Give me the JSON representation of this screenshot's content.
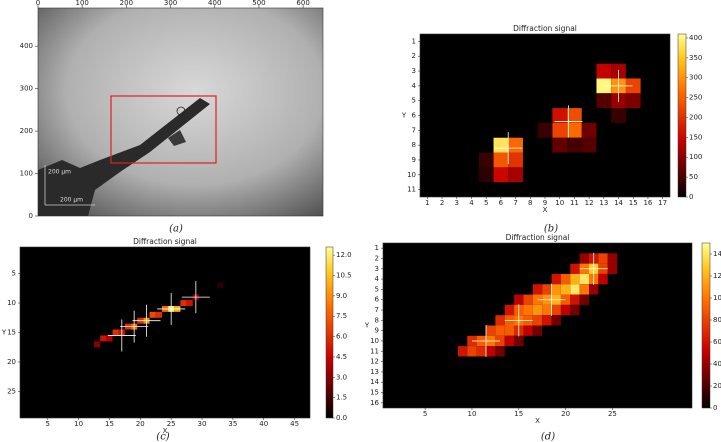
{
  "chart_data": [
    {
      "type": "image",
      "caption": "(a)",
      "xlim": [
        0,
        645
      ],
      "ylim": [
        0,
        490
      ],
      "xticks": [
        0,
        100,
        200,
        300,
        400,
        500,
        600
      ],
      "yticks": [
        0,
        100,
        200,
        300,
        400
      ],
      "annotations": [
        "200 µm",
        "200 µm"
      ]
    },
    {
      "type": "heatmap",
      "title": "Diffraction signal",
      "x_label": "X",
      "y_label": "Y",
      "caption": "(b)",
      "xlim": [
        0.5,
        17.5
      ],
      "ylim": [
        0.5,
        11.5
      ],
      "xticks": [
        1,
        2,
        3,
        4,
        5,
        6,
        7,
        8,
        9,
        10,
        11,
        12,
        13,
        14,
        15,
        16,
        17
      ],
      "yticks": [
        1,
        2,
        3,
        4,
        5,
        6,
        7,
        8,
        9,
        10,
        11
      ],
      "clim": [
        0,
        410
      ],
      "cticks": [
        0,
        50,
        100,
        150,
        200,
        250,
        300,
        350,
        400
      ],
      "cells": [
        [
          6,
          8,
          380
        ],
        [
          7,
          8,
          260
        ],
        [
          6,
          9,
          240
        ],
        [
          7,
          9,
          200
        ],
        [
          6,
          10,
          150
        ],
        [
          7,
          10,
          120
        ],
        [
          5,
          9,
          40
        ],
        [
          5,
          10,
          30
        ],
        [
          10,
          6,
          160
        ],
        [
          11,
          6,
          230
        ],
        [
          10,
          7,
          220
        ],
        [
          11,
          7,
          260
        ],
        [
          12,
          7,
          80
        ],
        [
          12,
          8,
          60
        ],
        [
          9,
          7,
          40
        ],
        [
          10,
          8,
          70
        ],
        [
          11,
          8,
          50
        ],
        [
          13,
          4,
          400
        ],
        [
          14,
          4,
          300
        ],
        [
          15,
          4,
          220
        ],
        [
          13,
          3,
          140
        ],
        [
          14,
          3,
          120
        ],
        [
          14,
          5,
          110
        ],
        [
          13,
          5,
          60
        ],
        [
          15,
          5,
          90
        ],
        [
          14,
          6,
          40
        ]
      ],
      "crosshairs": [
        [
          6.5,
          8.2
        ],
        [
          10.6,
          6.4
        ],
        [
          14,
          4
        ]
      ]
    },
    {
      "type": "heatmap",
      "title": "Diffraction signal",
      "x_label": "X",
      "y_label": "Y",
      "caption": "(c)",
      "xlim": [
        0.5,
        47.5
      ],
      "ylim": [
        0.5,
        29.5
      ],
      "xticks": [
        5,
        10,
        15,
        20,
        25,
        30,
        35,
        40,
        45
      ],
      "yticks": [
        5,
        10,
        15,
        20,
        25
      ],
      "clim": [
        0,
        12.6
      ],
      "cticks": [
        {
          "value": 0,
          "label": "0.0"
        },
        1.5,
        {
          "value": 3,
          "label": "3.0"
        },
        4.5,
        {
          "value": 6,
          "label": "6.0"
        },
        7.5,
        {
          "value": 9,
          "label": "9.0"
        },
        10.5,
        {
          "value": 12,
          "label": "12.0"
        }
      ],
      "cells": [
        [
          25,
          11,
          12
        ],
        [
          26,
          11,
          10
        ],
        [
          24,
          11,
          8
        ],
        [
          23,
          12,
          6
        ],
        [
          22,
          12,
          7
        ],
        [
          21,
          13,
          9
        ],
        [
          20,
          13,
          6
        ],
        [
          19,
          14,
          8
        ],
        [
          18,
          14,
          6
        ],
        [
          17,
          15,
          5
        ],
        [
          16,
          15,
          6
        ],
        [
          15,
          16,
          4
        ],
        [
          14,
          16,
          5
        ],
        [
          13,
          17,
          3
        ],
        [
          27,
          10,
          6
        ],
        [
          28,
          10,
          5
        ],
        [
          29,
          9,
          3
        ],
        [
          33,
          7,
          1
        ]
      ],
      "crosshairs": [
        [
          17,
          15.5
        ],
        [
          19,
          14
        ],
        [
          21,
          13
        ],
        [
          25,
          11
        ],
        [
          29,
          9
        ]
      ]
    },
    {
      "type": "heatmap",
      "title": "Diffraction signal",
      "x_label": "X",
      "y_label": "Y",
      "caption": "(d)",
      "xlim": [
        0.5,
        33.5
      ],
      "ylim": [
        0.5,
        16.5
      ],
      "xticks": [
        5,
        10,
        15,
        20,
        25
      ],
      "yticks": [
        1,
        2,
        3,
        4,
        5,
        6,
        7,
        8,
        9,
        10,
        11,
        12,
        13,
        14,
        15,
        16
      ],
      "clim": [
        0,
        150
      ],
      "cticks": [
        0,
        20,
        40,
        60,
        80,
        100,
        120,
        140
      ],
      "cells": [
        [
          22,
          2,
          40
        ],
        [
          23,
          2,
          60
        ],
        [
          24,
          2,
          80
        ],
        [
          25,
          2,
          40
        ],
        [
          21,
          3,
          60
        ],
        [
          22,
          3,
          100
        ],
        [
          23,
          3,
          130
        ],
        [
          24,
          3,
          80
        ],
        [
          25,
          3,
          40
        ],
        [
          19,
          4,
          60
        ],
        [
          20,
          4,
          90
        ],
        [
          21,
          4,
          120
        ],
        [
          22,
          4,
          140
        ],
        [
          23,
          4,
          100
        ],
        [
          24,
          4,
          50
        ],
        [
          17,
          5,
          60
        ],
        [
          18,
          5,
          80
        ],
        [
          19,
          5,
          110
        ],
        [
          20,
          5,
          120
        ],
        [
          21,
          5,
          140
        ],
        [
          22,
          5,
          100
        ],
        [
          23,
          5,
          40
        ],
        [
          15,
          6,
          50
        ],
        [
          16,
          6,
          80
        ],
        [
          17,
          6,
          100
        ],
        [
          18,
          6,
          110
        ],
        [
          19,
          6,
          120
        ],
        [
          20,
          6,
          90
        ],
        [
          21,
          6,
          60
        ],
        [
          22,
          6,
          30
        ],
        [
          14,
          7,
          60
        ],
        [
          15,
          7,
          90
        ],
        [
          16,
          7,
          100
        ],
        [
          17,
          7,
          110
        ],
        [
          18,
          7,
          100
        ],
        [
          19,
          7,
          80
        ],
        [
          20,
          7,
          50
        ],
        [
          21,
          7,
          30
        ],
        [
          13,
          8,
          70
        ],
        [
          14,
          8,
          90
        ],
        [
          15,
          8,
          100
        ],
        [
          16,
          8,
          90
        ],
        [
          17,
          8,
          80
        ],
        [
          18,
          8,
          60
        ],
        [
          19,
          8,
          30
        ],
        [
          12,
          9,
          80
        ],
        [
          13,
          9,
          90
        ],
        [
          14,
          9,
          90
        ],
        [
          15,
          9,
          70
        ],
        [
          16,
          9,
          50
        ],
        [
          17,
          9,
          30
        ],
        [
          10,
          10,
          70
        ],
        [
          11,
          10,
          90
        ],
        [
          12,
          10,
          100
        ],
        [
          13,
          10,
          80
        ],
        [
          14,
          10,
          50
        ],
        [
          15,
          10,
          30
        ],
        [
          9,
          11,
          60
        ],
        [
          10,
          11,
          80
        ],
        [
          11,
          11,
          70
        ],
        [
          12,
          11,
          50
        ],
        [
          13,
          11,
          30
        ]
      ],
      "crosshairs": [
        [
          11.5,
          10
        ],
        [
          15,
          8
        ],
        [
          18.5,
          6
        ],
        [
          23,
          3
        ]
      ]
    }
  ]
}
